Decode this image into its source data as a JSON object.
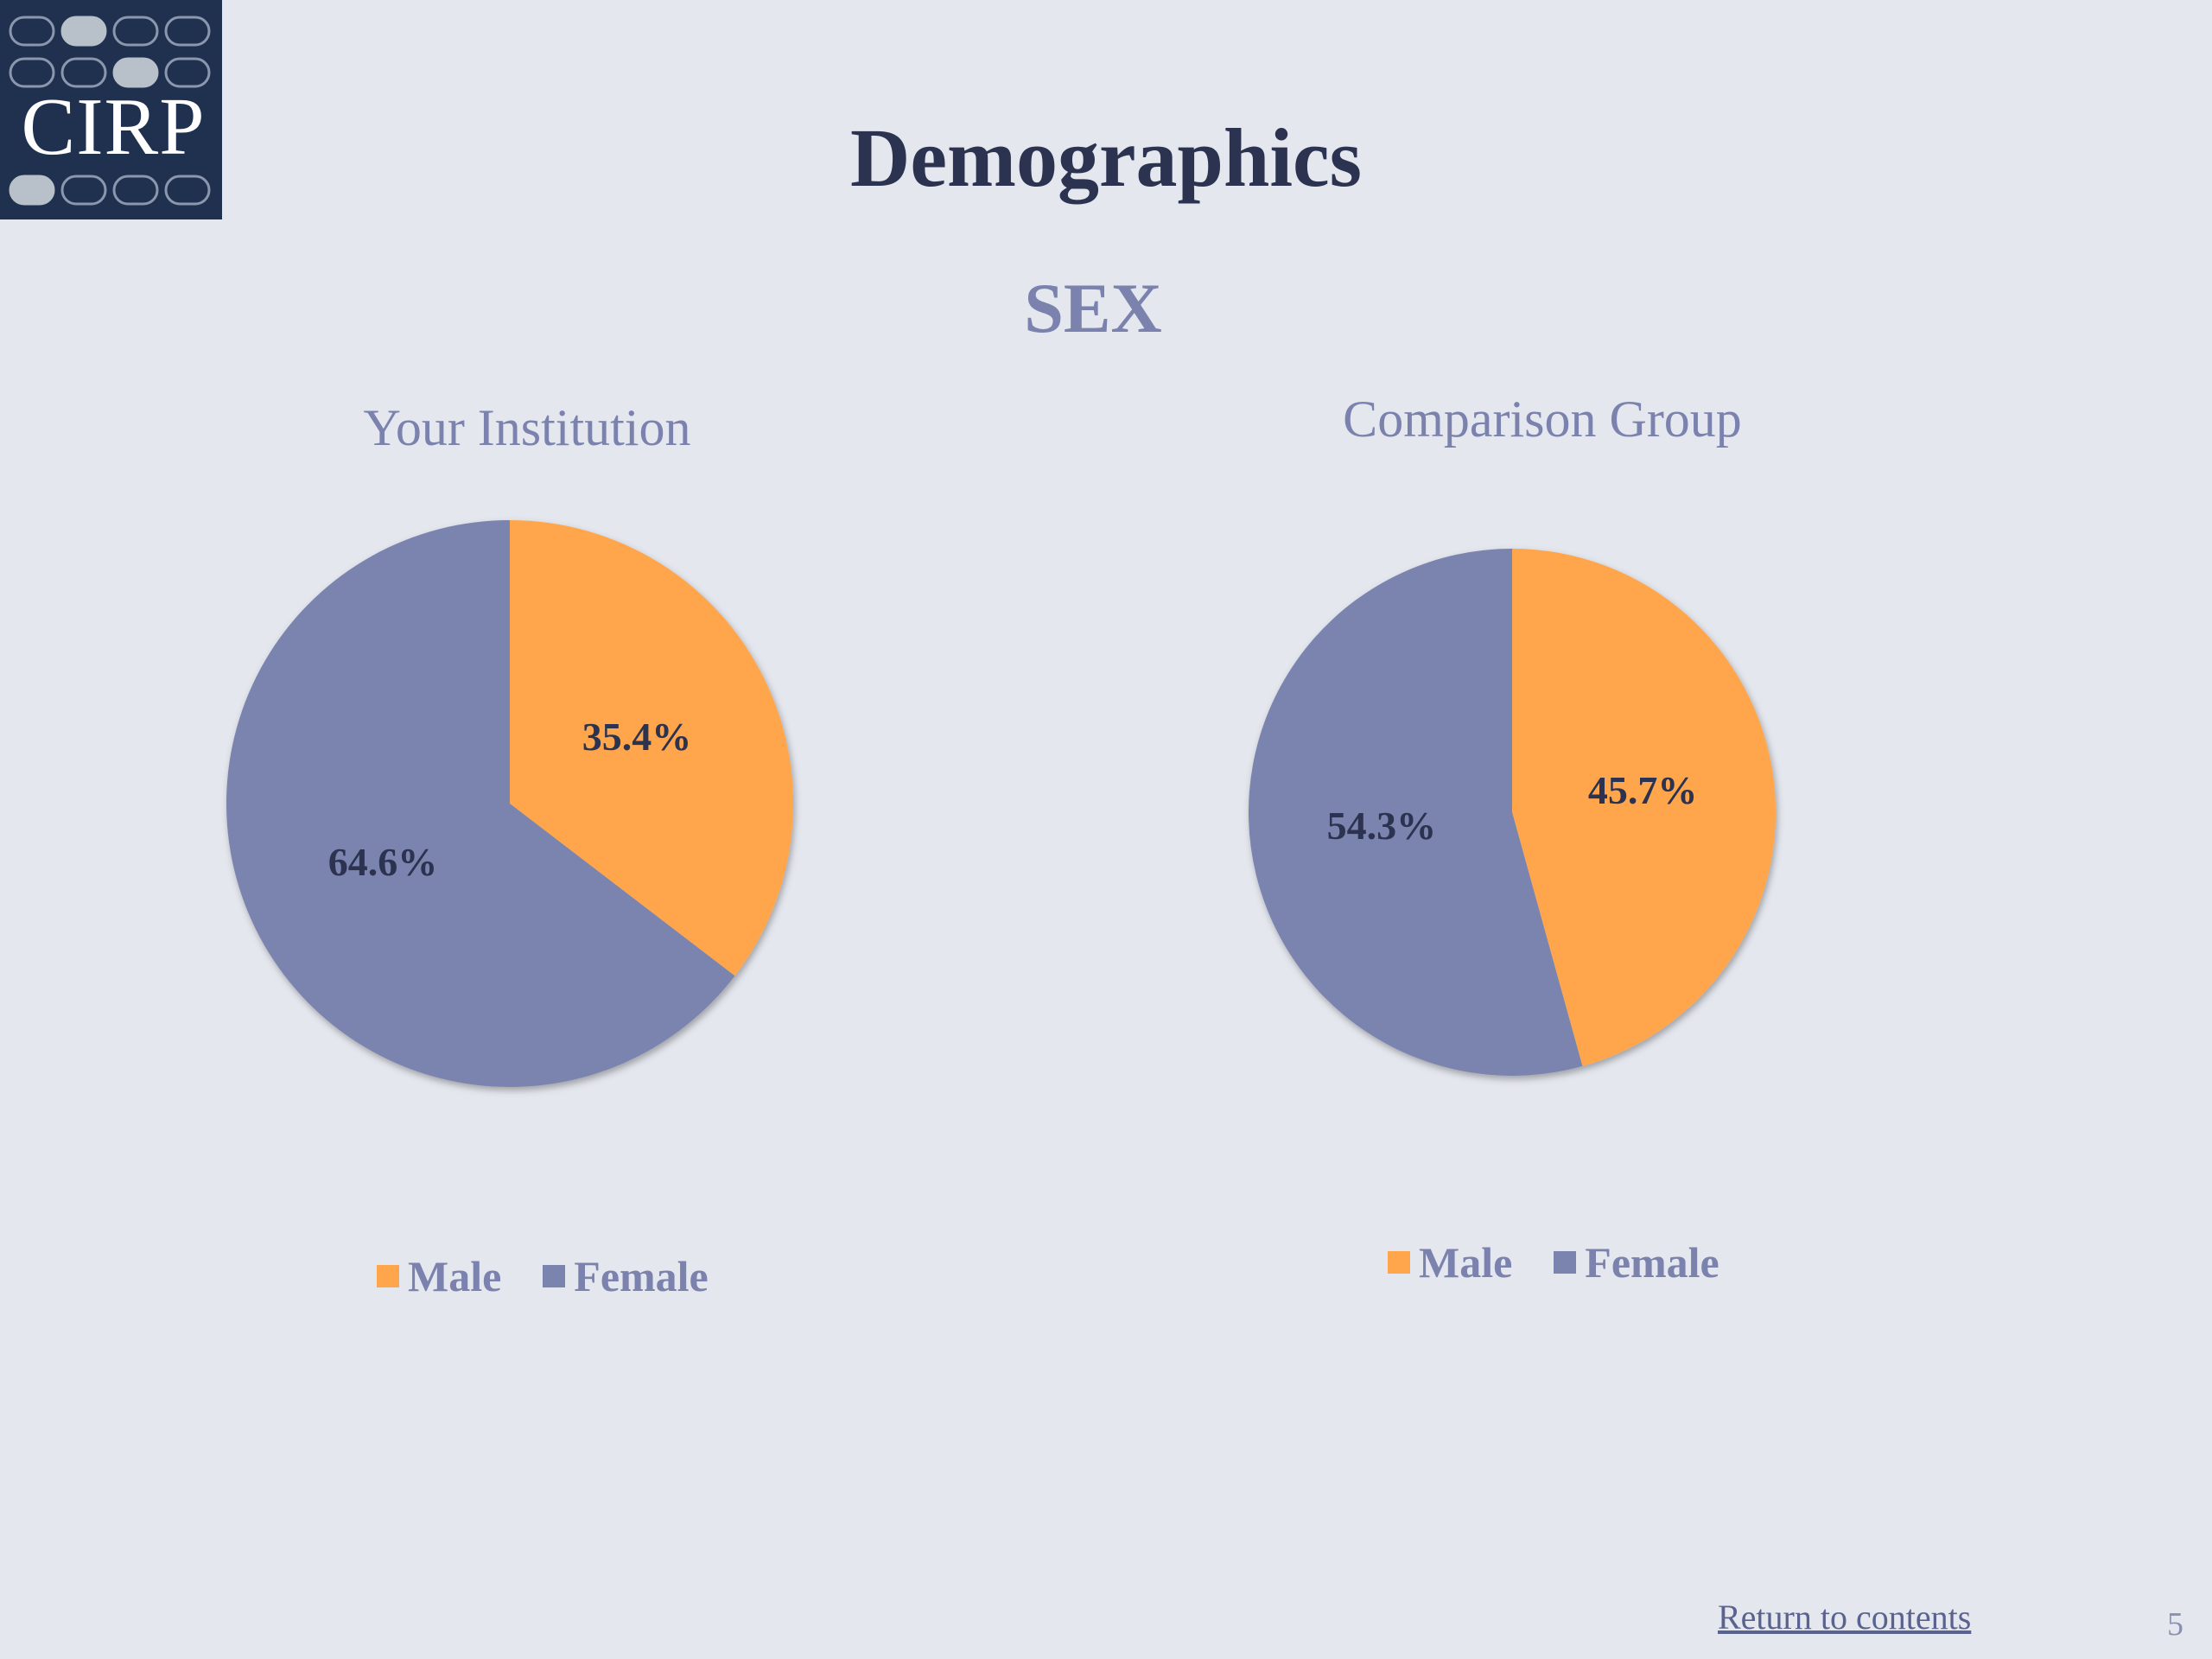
{
  "logo": {
    "text": "CIRP"
  },
  "title": "Demographics",
  "section": "SEX",
  "colors": {
    "male": "#ffa64d",
    "female": "#7a84ae",
    "background": "#e4e7ee",
    "logo_bg": "#20304f"
  },
  "chart_data": [
    {
      "type": "pie",
      "title": "Your Institution",
      "categories": [
        "Male",
        "Female"
      ],
      "values": [
        35.4,
        64.6
      ],
      "labels": [
        "35.4%",
        "64.6%"
      ],
      "legend": "bottom"
    },
    {
      "type": "pie",
      "title": "Comparison Group",
      "categories": [
        "Male",
        "Female"
      ],
      "values": [
        45.7,
        54.3
      ],
      "labels": [
        "45.7%",
        "54.3%"
      ],
      "legend": "bottom"
    }
  ],
  "footer": {
    "return_link": "Return to contents",
    "page_number": "5"
  }
}
